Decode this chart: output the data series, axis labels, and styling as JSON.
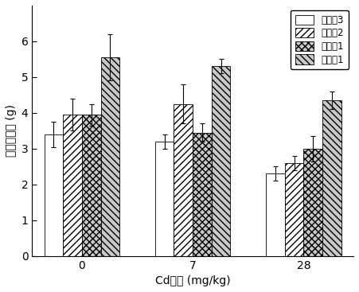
{
  "groups": [
    "0",
    "7",
    "28"
  ],
  "xlabel": "Cd浓度 (mg/kg)",
  "ylabel": "地上部干重 (g)",
  "ylim": [
    0,
    7
  ],
  "yticks": [
    0,
    1,
    2,
    3,
    4,
    5,
    6
  ],
  "series": [
    {
      "name": "对比例3",
      "values": [
        3.4,
        3.2,
        2.3
      ],
      "errors": [
        0.35,
        0.2,
        0.2
      ],
      "hatch": "",
      "facecolor": "white",
      "edgecolor": "black"
    },
    {
      "name": "对比例2",
      "values": [
        3.95,
        4.25,
        2.6
      ],
      "errors": [
        0.45,
        0.55,
        0.2
      ],
      "hatch": "////",
      "facecolor": "white",
      "edgecolor": "black"
    },
    {
      "name": "对比例1",
      "values": [
        3.95,
        3.45,
        3.0
      ],
      "errors": [
        0.3,
        0.25,
        0.35
      ],
      "hatch": "xxxx",
      "facecolor": "#c8c8c8",
      "edgecolor": "black"
    },
    {
      "name": "实施例1",
      "values": [
        5.55,
        5.3,
        4.35
      ],
      "errors": [
        0.65,
        0.2,
        0.25
      ],
      "hatch": "\\\\\\\\",
      "facecolor": "#c8c8c8",
      "edgecolor": "black"
    }
  ],
  "bar_width": 0.17,
  "group_centers": [
    0.3,
    1.3,
    2.3
  ],
  "legend_fontsize": 8.5,
  "axis_fontsize": 10,
  "tick_fontsize": 10,
  "fig_facecolor": "white",
  "ax_facecolor": "white"
}
